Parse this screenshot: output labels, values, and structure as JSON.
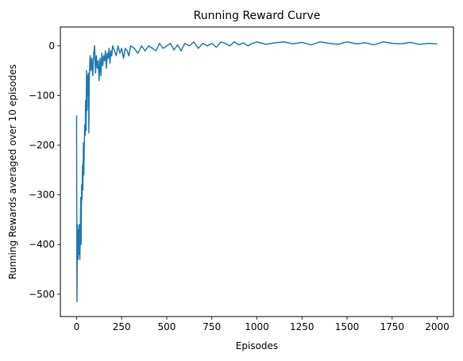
{
  "chart_data": {
    "type": "line",
    "title": "Running Reward Curve",
    "xlabel": "Episodes",
    "ylabel": "Running Rewards averaged over 10 episodes",
    "xlim": [
      -90,
      2090
    ],
    "ylim": [
      -545,
      38
    ],
    "xticks": [
      0,
      250,
      500,
      750,
      1000,
      1250,
      1500,
      1750,
      2000
    ],
    "yticks": [
      -500,
      -400,
      -300,
      -200,
      -100,
      0
    ],
    "grid": false,
    "series": [
      {
        "name": "",
        "color": "#1f77b4",
        "x": [
          0,
          2,
          5,
          8,
          10,
          13,
          15,
          18,
          20,
          23,
          25,
          28,
          30,
          33,
          35,
          38,
          40,
          43,
          45,
          48,
          50,
          53,
          55,
          58,
          60,
          63,
          65,
          68,
          70,
          73,
          75,
          78,
          80,
          85,
          90,
          95,
          100,
          105,
          110,
          115,
          120,
          125,
          130,
          135,
          140,
          145,
          150,
          155,
          160,
          165,
          170,
          175,
          180,
          185,
          190,
          195,
          200,
          210,
          220,
          230,
          240,
          250,
          260,
          270,
          280,
          290,
          300,
          320,
          340,
          360,
          380,
          400,
          420,
          440,
          460,
          480,
          500,
          520,
          540,
          560,
          580,
          600,
          625,
          650,
          675,
          700,
          725,
          750,
          775,
          800,
          825,
          850,
          875,
          900,
          925,
          950,
          975,
          1000,
          1050,
          1100,
          1150,
          1200,
          1250,
          1300,
          1350,
          1400,
          1450,
          1500,
          1550,
          1600,
          1650,
          1700,
          1750,
          1800,
          1850,
          1900,
          1950,
          2000
        ],
        "y": [
          -140,
          -515,
          -360,
          -430,
          -370,
          -420,
          -360,
          -430,
          -395,
          -305,
          -400,
          -280,
          -310,
          -240,
          -290,
          -195,
          -260,
          -200,
          -160,
          -180,
          -110,
          -170,
          -50,
          -130,
          -60,
          -100,
          -55,
          -175,
          -70,
          -40,
          -20,
          -30,
          -50,
          -25,
          -60,
          -15,
          0,
          -55,
          -20,
          -45,
          -30,
          -70,
          -25,
          -60,
          -15,
          -40,
          -20,
          -30,
          -10,
          -45,
          -15,
          -25,
          -5,
          -35,
          -10,
          -20,
          0,
          -10,
          -20,
          0,
          -15,
          -5,
          -25,
          -5,
          -10,
          -20,
          0,
          -5,
          -15,
          0,
          -10,
          0,
          -5,
          -10,
          5,
          -5,
          0,
          5,
          -8,
          2,
          -10,
          5,
          0,
          8,
          -5,
          5,
          0,
          5,
          -3,
          8,
          5,
          0,
          8,
          2,
          6,
          0,
          5,
          8,
          3,
          6,
          8,
          4,
          7,
          2,
          8,
          5,
          3,
          8,
          4,
          6,
          2,
          8,
          5,
          4,
          7,
          3,
          5,
          4
        ]
      }
    ]
  }
}
